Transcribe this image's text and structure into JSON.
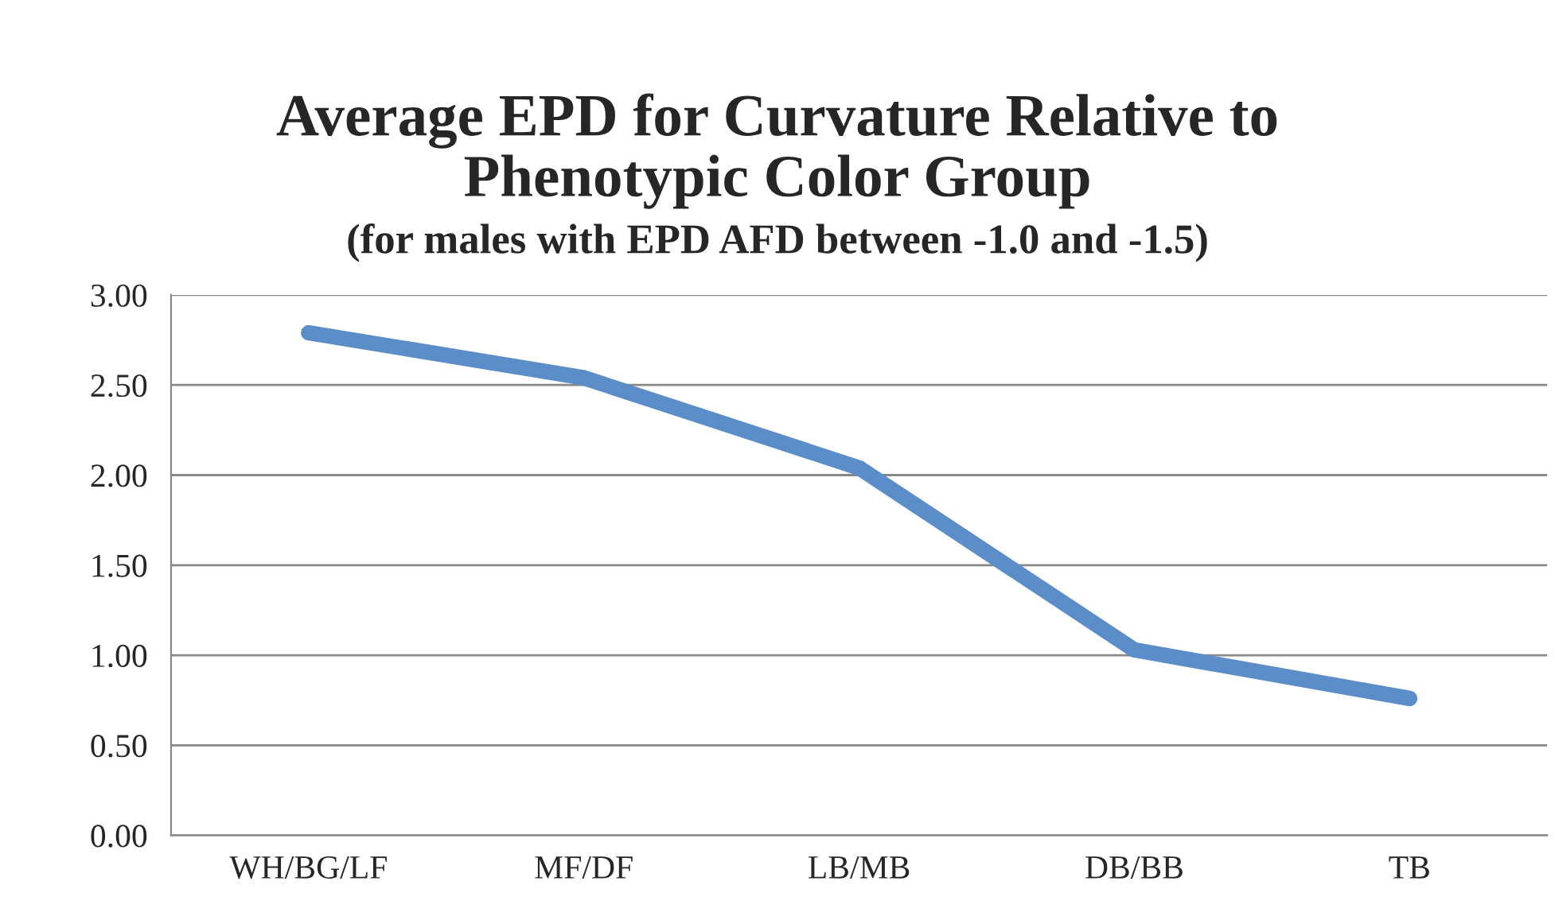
{
  "chart_data": {
    "type": "line",
    "title": "Average EPD for Curvature Relative to\nPhenotypic Color Group",
    "subtitle": "(for males with EPD AFD between -1.0 and -1.5)",
    "categories": [
      "WH/BG/LF",
      "MF/DF",
      "LB/MB",
      "DB/BB",
      "TB"
    ],
    "series": [
      {
        "color": "#5b8ec8",
        "values": [
          2.79,
          2.54,
          2.04,
          1.03,
          0.76
        ]
      }
    ],
    "ylim": [
      0,
      3
    ],
    "yticks": [
      {
        "value": 0,
        "label": "0.00"
      },
      {
        "value": 0.5,
        "label": "0.50"
      },
      {
        "value": 1,
        "label": "1.00"
      },
      {
        "value": 1.5,
        "label": "1.50"
      },
      {
        "value": 2,
        "label": "2.00"
      },
      {
        "value": 2.5,
        "label": "2.50"
      },
      {
        "value": 3,
        "label": "3.00"
      }
    ],
    "grid": "y",
    "marker": "none",
    "line_style": "solid"
  }
}
